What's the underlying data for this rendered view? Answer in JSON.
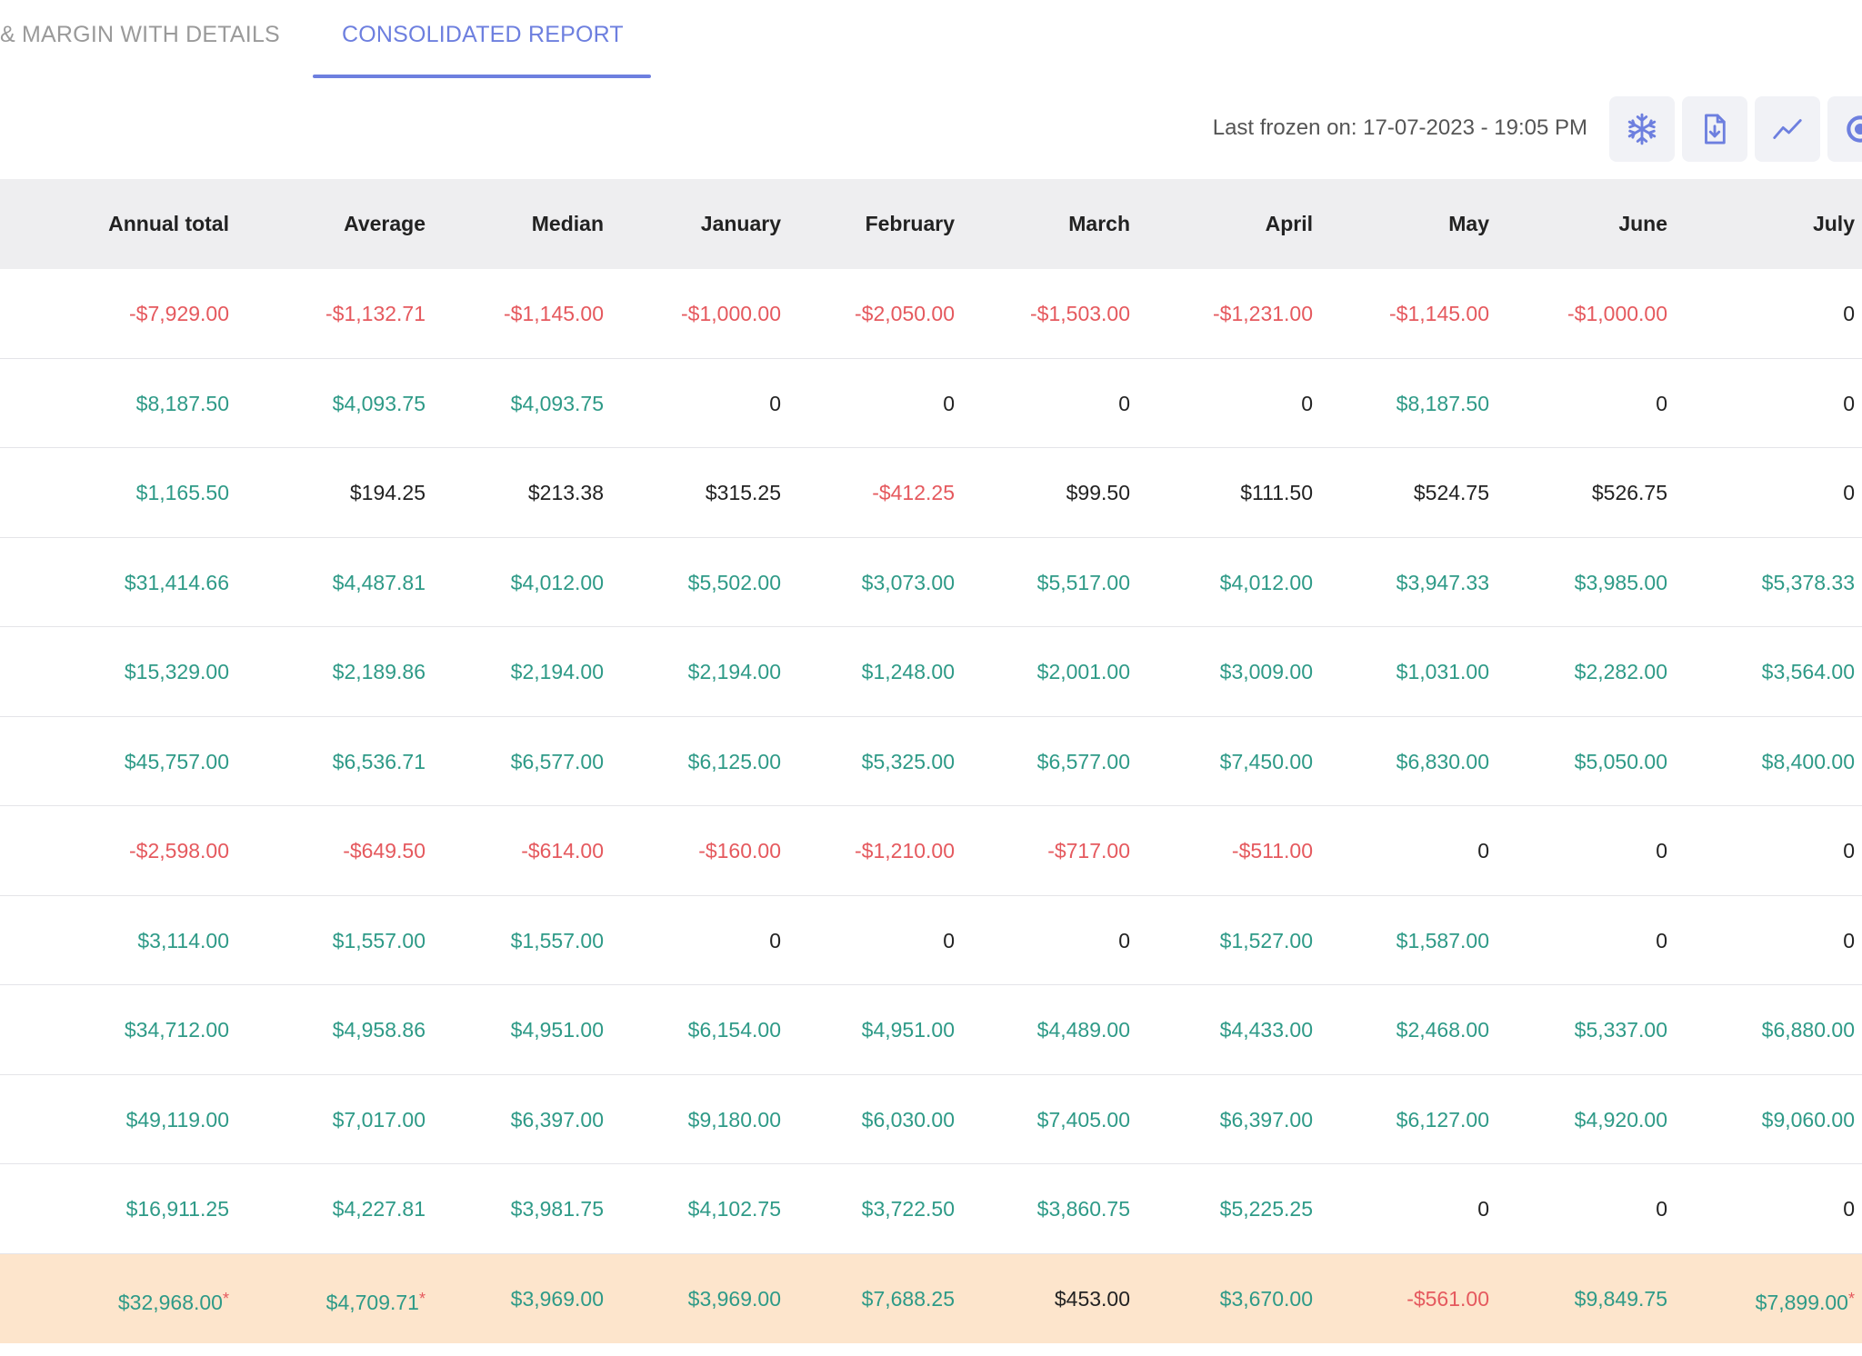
{
  "tabs": {
    "inactive_label": "& MARGIN WITH DETAILS",
    "active_label": "CONSOLIDATED REPORT"
  },
  "toolbar": {
    "frozen_text": "Last frozen on: 17-07-2023 - 19:05 PM",
    "buttons": [
      "snowflake-icon",
      "file-download-icon",
      "trend-line-icon",
      "target-icon"
    ]
  },
  "colors": {
    "accent": "#6d7fdf",
    "positive": "#2e9a87",
    "negative": "#e5595e",
    "neutral": "#222222",
    "header_bg": "#eeeef0",
    "highlight_bg": "#fde5cc"
  },
  "table": {
    "columns": [
      "Annual total",
      "Average",
      "Median",
      "January",
      "February",
      "March",
      "April",
      "May",
      "June",
      "July"
    ],
    "rows": [
      {
        "highlight": false,
        "cells": [
          {
            "v": "-$7,929.00",
            "t": "neg"
          },
          {
            "v": "-$1,132.71",
            "t": "neg"
          },
          {
            "v": "-$1,145.00",
            "t": "neg"
          },
          {
            "v": "-$1,000.00",
            "t": "neg"
          },
          {
            "v": "-$2,050.00",
            "t": "neg"
          },
          {
            "v": "-$1,503.00",
            "t": "neg"
          },
          {
            "v": "-$1,231.00",
            "t": "neg"
          },
          {
            "v": "-$1,145.00",
            "t": "neg"
          },
          {
            "v": "-$1,000.00",
            "t": "neg"
          },
          {
            "v": "0",
            "t": "neu"
          }
        ]
      },
      {
        "highlight": false,
        "cells": [
          {
            "v": "$8,187.50",
            "t": "pos"
          },
          {
            "v": "$4,093.75",
            "t": "pos"
          },
          {
            "v": "$4,093.75",
            "t": "pos"
          },
          {
            "v": "0",
            "t": "neu"
          },
          {
            "v": "0",
            "t": "neu"
          },
          {
            "v": "0",
            "t": "neu"
          },
          {
            "v": "0",
            "t": "neu"
          },
          {
            "v": "$8,187.50",
            "t": "pos"
          },
          {
            "v": "0",
            "t": "neu"
          },
          {
            "v": "0",
            "t": "neu"
          }
        ]
      },
      {
        "highlight": false,
        "cells": [
          {
            "v": "$1,165.50",
            "t": "pos"
          },
          {
            "v": "$194.25",
            "t": "neu"
          },
          {
            "v": "$213.38",
            "t": "neu"
          },
          {
            "v": "$315.25",
            "t": "neu"
          },
          {
            "v": "-$412.25",
            "t": "neg"
          },
          {
            "v": "$99.50",
            "t": "neu"
          },
          {
            "v": "$111.50",
            "t": "neu"
          },
          {
            "v": "$524.75",
            "t": "neu"
          },
          {
            "v": "$526.75",
            "t": "neu"
          },
          {
            "v": "0",
            "t": "neu"
          }
        ]
      },
      {
        "highlight": false,
        "cells": [
          {
            "v": "$31,414.66",
            "t": "pos"
          },
          {
            "v": "$4,487.81",
            "t": "pos"
          },
          {
            "v": "$4,012.00",
            "t": "pos"
          },
          {
            "v": "$5,502.00",
            "t": "pos"
          },
          {
            "v": "$3,073.00",
            "t": "pos"
          },
          {
            "v": "$5,517.00",
            "t": "pos"
          },
          {
            "v": "$4,012.00",
            "t": "pos"
          },
          {
            "v": "$3,947.33",
            "t": "pos"
          },
          {
            "v": "$3,985.00",
            "t": "pos"
          },
          {
            "v": "$5,378.33",
            "t": "pos"
          }
        ]
      },
      {
        "highlight": false,
        "cells": [
          {
            "v": "$15,329.00",
            "t": "pos"
          },
          {
            "v": "$2,189.86",
            "t": "pos"
          },
          {
            "v": "$2,194.00",
            "t": "pos"
          },
          {
            "v": "$2,194.00",
            "t": "pos"
          },
          {
            "v": "$1,248.00",
            "t": "pos"
          },
          {
            "v": "$2,001.00",
            "t": "pos"
          },
          {
            "v": "$3,009.00",
            "t": "pos"
          },
          {
            "v": "$1,031.00",
            "t": "pos"
          },
          {
            "v": "$2,282.00",
            "t": "pos"
          },
          {
            "v": "$3,564.00",
            "t": "pos"
          }
        ]
      },
      {
        "highlight": false,
        "cells": [
          {
            "v": "$45,757.00",
            "t": "pos"
          },
          {
            "v": "$6,536.71",
            "t": "pos"
          },
          {
            "v": "$6,577.00",
            "t": "pos"
          },
          {
            "v": "$6,125.00",
            "t": "pos"
          },
          {
            "v": "$5,325.00",
            "t": "pos"
          },
          {
            "v": "$6,577.00",
            "t": "pos"
          },
          {
            "v": "$7,450.00",
            "t": "pos"
          },
          {
            "v": "$6,830.00",
            "t": "pos"
          },
          {
            "v": "$5,050.00",
            "t": "pos"
          },
          {
            "v": "$8,400.00",
            "t": "pos"
          }
        ]
      },
      {
        "highlight": false,
        "cells": [
          {
            "v": "-$2,598.00",
            "t": "neg"
          },
          {
            "v": "-$649.50",
            "t": "neg"
          },
          {
            "v": "-$614.00",
            "t": "neg"
          },
          {
            "v": "-$160.00",
            "t": "neg"
          },
          {
            "v": "-$1,210.00",
            "t": "neg"
          },
          {
            "v": "-$717.00",
            "t": "neg"
          },
          {
            "v": "-$511.00",
            "t": "neg"
          },
          {
            "v": "0",
            "t": "neu"
          },
          {
            "v": "0",
            "t": "neu"
          },
          {
            "v": "0",
            "t": "neu"
          }
        ]
      },
      {
        "highlight": false,
        "cells": [
          {
            "v": "$3,114.00",
            "t": "pos"
          },
          {
            "v": "$1,557.00",
            "t": "pos"
          },
          {
            "v": "$1,557.00",
            "t": "pos"
          },
          {
            "v": "0",
            "t": "neu"
          },
          {
            "v": "0",
            "t": "neu"
          },
          {
            "v": "0",
            "t": "neu"
          },
          {
            "v": "$1,527.00",
            "t": "pos"
          },
          {
            "v": "$1,587.00",
            "t": "pos"
          },
          {
            "v": "0",
            "t": "neu"
          },
          {
            "v": "0",
            "t": "neu"
          }
        ]
      },
      {
        "highlight": false,
        "cells": [
          {
            "v": "$34,712.00",
            "t": "pos"
          },
          {
            "v": "$4,958.86",
            "t": "pos"
          },
          {
            "v": "$4,951.00",
            "t": "pos"
          },
          {
            "v": "$6,154.00",
            "t": "pos"
          },
          {
            "v": "$4,951.00",
            "t": "pos"
          },
          {
            "v": "$4,489.00",
            "t": "pos"
          },
          {
            "v": "$4,433.00",
            "t": "pos"
          },
          {
            "v": "$2,468.00",
            "t": "pos"
          },
          {
            "v": "$5,337.00",
            "t": "pos"
          },
          {
            "v": "$6,880.00",
            "t": "pos"
          }
        ]
      },
      {
        "highlight": false,
        "cells": [
          {
            "v": "$49,119.00",
            "t": "pos"
          },
          {
            "v": "$7,017.00",
            "t": "pos"
          },
          {
            "v": "$6,397.00",
            "t": "pos"
          },
          {
            "v": "$9,180.00",
            "t": "pos"
          },
          {
            "v": "$6,030.00",
            "t": "pos"
          },
          {
            "v": "$7,405.00",
            "t": "pos"
          },
          {
            "v": "$6,397.00",
            "t": "pos"
          },
          {
            "v": "$6,127.00",
            "t": "pos"
          },
          {
            "v": "$4,920.00",
            "t": "pos"
          },
          {
            "v": "$9,060.00",
            "t": "pos"
          }
        ]
      },
      {
        "highlight": false,
        "cells": [
          {
            "v": "$16,911.25",
            "t": "pos"
          },
          {
            "v": "$4,227.81",
            "t": "pos"
          },
          {
            "v": "$3,981.75",
            "t": "pos"
          },
          {
            "v": "$4,102.75",
            "t": "pos"
          },
          {
            "v": "$3,722.50",
            "t": "pos"
          },
          {
            "v": "$3,860.75",
            "t": "pos"
          },
          {
            "v": "$5,225.25",
            "t": "pos"
          },
          {
            "v": "0",
            "t": "neu"
          },
          {
            "v": "0",
            "t": "neu"
          },
          {
            "v": "0",
            "t": "neu"
          }
        ]
      },
      {
        "highlight": true,
        "cells": [
          {
            "v": "$32,968.00",
            "t": "pos",
            "star": "*"
          },
          {
            "v": "$4,709.71",
            "t": "pos",
            "star": "*"
          },
          {
            "v": "$3,969.00",
            "t": "pos"
          },
          {
            "v": "$3,969.00",
            "t": "pos"
          },
          {
            "v": "$7,688.25",
            "t": "pos"
          },
          {
            "v": "$453.00",
            "t": "neu"
          },
          {
            "v": "$3,670.00",
            "t": "pos"
          },
          {
            "v": "-$561.00",
            "t": "neg"
          },
          {
            "v": "$9,849.75",
            "t": "pos"
          },
          {
            "v": "$7,899.00",
            "t": "pos",
            "star": "*"
          }
        ]
      }
    ]
  }
}
